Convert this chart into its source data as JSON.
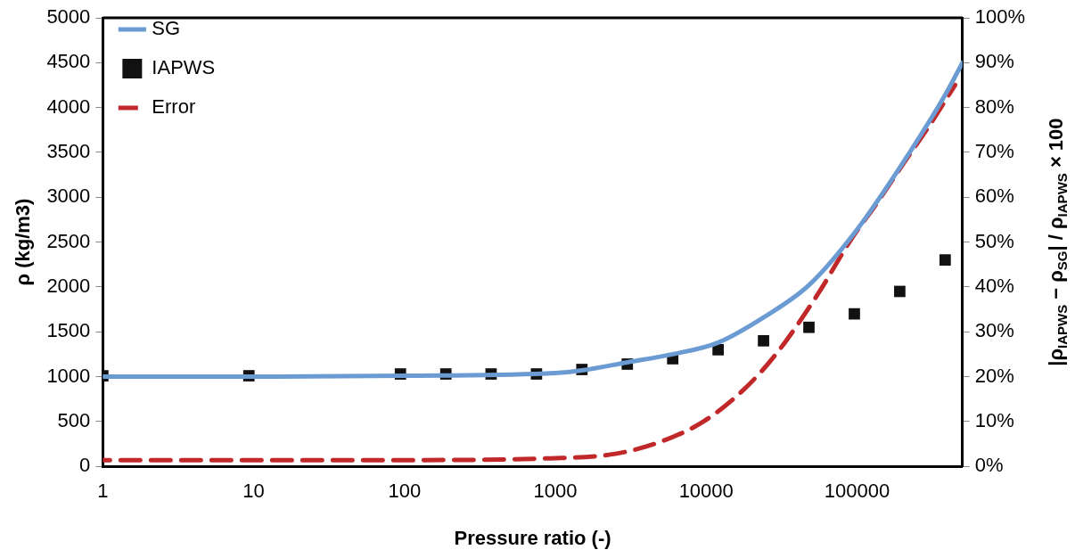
{
  "chart_data": {
    "type": "line",
    "xlabel": "Pressure ratio (-)",
    "ylabel": "ρ (kg/m3)",
    "y2label": "|ρ$_{IAPWS}$ − ρ$_{SG}$| / ρ$_{IAPWS}$ × 100",
    "log": "x",
    "legend": "top left",
    "grid": false,
    "xlim": [
      1,
      500000
    ],
    "xticks": [
      1,
      10,
      100,
      1000,
      10000,
      100000
    ],
    "ylim": [
      0,
      5000
    ],
    "yticks": [
      0,
      500,
      1000,
      1500,
      2000,
      2500,
      3000,
      3500,
      4000,
      4500,
      5000
    ],
    "y2lim": [
      0,
      100
    ],
    "y2ticks": [
      {
        "value": 0,
        "label": "0%"
      },
      {
        "value": 10,
        "label": "10%"
      },
      {
        "value": 20,
        "label": "20%"
      },
      {
        "value": 30,
        "label": "30%"
      },
      {
        "value": 40,
        "label": "40%"
      },
      {
        "value": 50,
        "label": "50%"
      },
      {
        "value": 60,
        "label": "60%"
      },
      {
        "value": 70,
        "label": "70%"
      },
      {
        "value": 80,
        "label": "80%"
      },
      {
        "value": 90,
        "label": "90%"
      },
      {
        "value": 100,
        "label": "100%"
      }
    ],
    "series": [
      {
        "name": "SG",
        "color": "#6a9bd3",
        "marker": "none",
        "line_style": "solid",
        "x": [
          1,
          10,
          100,
          1000,
          1500,
          3000,
          6000,
          12000,
          24000,
          48000,
          96000,
          192000,
          384000,
          500000
        ],
        "values": [
          1000,
          1000,
          1010,
          1040,
          1070,
          1160,
          1250,
          1380,
          1660,
          2020,
          2600,
          3330,
          4140,
          4500
        ]
      },
      {
        "name": "IAPWS",
        "type": "scatter",
        "color": "#111111",
        "marker": "square",
        "x": [
          1,
          9.3,
          94,
          188,
          375,
          750,
          1500,
          3000,
          6000,
          12000,
          24000,
          48000,
          96000,
          192000,
          384000
        ],
        "values": [
          1010,
          1010,
          1030,
          1030,
          1030,
          1030,
          1080,
          1140,
          1200,
          1300,
          1400,
          1550,
          1700,
          1950,
          2300
        ]
      },
      {
        "name": "Error",
        "type": "line",
        "color": "#c0282a",
        "marker": "none",
        "line_style": "dashed",
        "axis": "y2",
        "x": [
          1,
          100,
          930,
          2500,
          5000,
          9700,
          17600,
          29000,
          55000,
          91000,
          135000,
          203000,
          302000,
          447000
        ],
        "values": [
          1.4,
          1.4,
          1.8,
          2.8,
          5.5,
          10.1,
          17,
          25,
          38.4,
          50.5,
          58.6,
          67.5,
          76,
          85
        ]
      }
    ]
  }
}
